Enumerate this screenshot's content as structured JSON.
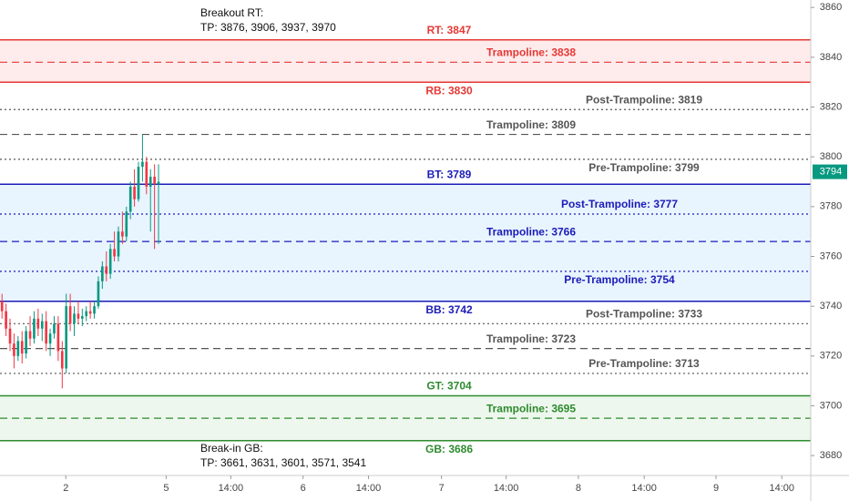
{
  "chart_data": {
    "type": "candlestick",
    "annotations": {
      "top": [
        "Breakout RT:",
        "TP: 3876, 3906, 3937, 3970"
      ],
      "bottom": [
        "Break-in GB:",
        "TP: 3661, 3631, 3601, 3571, 3541"
      ]
    },
    "x": [
      0.5,
      1.5,
      2.5,
      3.5,
      4.5,
      5.5,
      6.5,
      7.5,
      8.5,
      9.5,
      10.5,
      11.5,
      12.5,
      13.5,
      14.5,
      15.5,
      16.5,
      17.5,
      18.5,
      19.5,
      20.5,
      21.5,
      22.5,
      23.5,
      24.5,
      25.5,
      26.5,
      27.5,
      28.5,
      29.5,
      30.5,
      31.5,
      32.5,
      33.5,
      34.5,
      35.5,
      36.5,
      37.5,
      38.5,
      39.5
    ],
    "open": [
      3742,
      3738,
      3731,
      3725,
      3720,
      3726,
      3721,
      3730,
      3727,
      3735,
      3731,
      3734,
      3725,
      3729,
      3733,
      3722,
      3715,
      3740,
      3733,
      3737,
      3735,
      3736,
      3738,
      3737,
      3740,
      3750,
      3756,
      3753,
      3763,
      3760,
      3770,
      3768,
      3778,
      3788,
      3783,
      3796,
      3798,
      3788,
      3792,
      3789
    ],
    "high": [
      3745,
      3741,
      3735,
      3729,
      3728,
      3730,
      3732,
      3736,
      3738,
      3739,
      3737,
      3738,
      3731,
      3736,
      3736,
      3726,
      3745,
      3745,
      3740,
      3742,
      3739,
      3740,
      3742,
      3742,
      3752,
      3758,
      3762,
      3765,
      3770,
      3772,
      3778,
      3780,
      3790,
      3795,
      3798,
      3809,
      3800,
      3795,
      3797,
      3797
    ],
    "low": [
      3735,
      3728,
      3722,
      3715,
      3718,
      3717,
      3719,
      3724,
      3725,
      3728,
      3726,
      3722,
      3720,
      3727,
      3718,
      3707,
      3713,
      3730,
      3728,
      3733,
      3732,
      3734,
      3735,
      3735,
      3739,
      3747,
      3750,
      3751,
      3758,
      3758,
      3765,
      3766,
      3775,
      3780,
      3782,
      3790,
      3785,
      3770,
      3763,
      3765
    ],
    "close": [
      3738,
      3731,
      3725,
      3720,
      3726,
      3721,
      3730,
      3727,
      3735,
      3731,
      3734,
      3725,
      3729,
      3733,
      3722,
      3715,
      3740,
      3733,
      3737,
      3735,
      3736,
      3738,
      3737,
      3740,
      3750,
      3756,
      3753,
      3763,
      3760,
      3770,
      3768,
      3778,
      3788,
      3783,
      3796,
      3798,
      3788,
      3792,
      3789,
      3790
    ],
    "up_color": "#089981",
    "down_color": "#f23645",
    "levels": [
      {
        "label": "RT: 3847",
        "value": 3847,
        "color": "#e53935",
        "style": "solid"
      },
      {
        "label": "Trampoline: 3838",
        "value": 3838,
        "color": "#e53935",
        "style": "dashed"
      },
      {
        "label": "RB: 3830",
        "value": 3830,
        "color": "#e53935",
        "style": "solid"
      },
      {
        "label": "Post-Trampoline: 3819",
        "value": 3819,
        "color": "#555555",
        "style": "dotted"
      },
      {
        "label": "Trampoline: 3809",
        "value": 3809,
        "color": "#555555",
        "style": "dashed"
      },
      {
        "label": "Pre-Trampoline: 3799",
        "value": 3799,
        "color": "#555555",
        "style": "dotted"
      },
      {
        "label": "BT: 3789",
        "value": 3789,
        "color": "#1c1cb8",
        "style": "solid"
      },
      {
        "label": "Post-Trampoline: 3777",
        "value": 3777,
        "color": "#1c1cb8",
        "style": "dotted"
      },
      {
        "label": "Trampoline: 3766",
        "value": 3766,
        "color": "#1c1cb8",
        "style": "dashed"
      },
      {
        "label": "Pre-Trampoline: 3754",
        "value": 3754,
        "color": "#1c1cb8",
        "style": "dotted"
      },
      {
        "label": "BB: 3742",
        "value": 3742,
        "color": "#1c1cb8",
        "style": "solid"
      },
      {
        "label": "Post-Trampoline: 3733",
        "value": 3733,
        "color": "#555555",
        "style": "dotted"
      },
      {
        "label": "Trampoline: 3723",
        "value": 3723,
        "color": "#555555",
        "style": "dashed"
      },
      {
        "label": "Pre-Trampoline: 3713",
        "value": 3713,
        "color": "#555555",
        "style": "dotted"
      },
      {
        "label": "GT: 3704",
        "value": 3704,
        "color": "#2e8b2e",
        "style": "solid"
      },
      {
        "label": "Trampoline: 3695",
        "value": 3695,
        "color": "#2e8b2e",
        "style": "dashed"
      },
      {
        "label": "GB: 3686",
        "value": 3686,
        "color": "#2e8b2e",
        "style": "solid"
      }
    ],
    "last_price": 3794,
    "xlim": [
      0,
      202
    ],
    "xticks": [
      {
        "value": 16.4,
        "label": "2"
      },
      {
        "value": 41.4,
        "label": "5"
      },
      {
        "value": 57.5,
        "label": "14:00"
      },
      {
        "value": 75.5,
        "label": "6"
      },
      {
        "value": 91.8,
        "label": "14:00"
      },
      {
        "value": 110,
        "label": "7"
      },
      {
        "value": 126.1,
        "label": "14:00"
      },
      {
        "value": 144.1,
        "label": "8"
      },
      {
        "value": 160.5,
        "label": "14:00"
      },
      {
        "value": 178.4,
        "label": "9"
      },
      {
        "value": 194.8,
        "label": "14:00"
      }
    ],
    "ylim": [
      3672,
      3863
    ],
    "yticks": [
      3680,
      3700,
      3720,
      3740,
      3760,
      3780,
      3800,
      3820,
      3840,
      3860
    ]
  }
}
